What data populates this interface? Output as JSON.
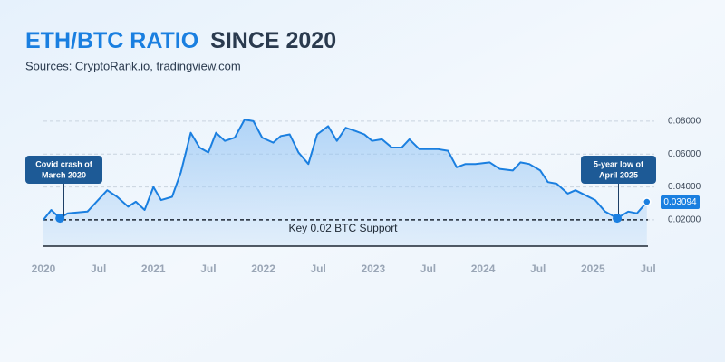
{
  "chart_data": {
    "type": "line",
    "title": [
      "ETH/BTC RATIO",
      "SINCE 2020"
    ],
    "subtitle": "Sources: CryptoRank.io, tradingview.com",
    "x": [
      2020.0,
      2020.07,
      2020.15,
      2020.22,
      2020.4,
      2020.58,
      2020.67,
      2020.77,
      2020.84,
      2020.92,
      2021.0,
      2021.07,
      2021.17,
      2021.25,
      2021.34,
      2021.42,
      2021.5,
      2021.57,
      2021.65,
      2021.74,
      2021.83,
      2021.91,
      2021.99,
      2022.09,
      2022.16,
      2022.24,
      2022.32,
      2022.41,
      2022.49,
      2022.59,
      2022.67,
      2022.75,
      2022.84,
      2022.92,
      2022.99,
      2023.08,
      2023.17,
      2023.26,
      2023.33,
      2023.42,
      2023.59,
      2023.68,
      2023.76,
      2023.84,
      2023.93,
      2024.06,
      2024.15,
      2024.27,
      2024.34,
      2024.42,
      2024.52,
      2024.59,
      2024.67,
      2024.77,
      2024.84,
      2024.93,
      2025.02,
      2025.11,
      2025.22,
      2025.32,
      2025.4,
      2025.49
    ],
    "series": [
      {
        "name": "ETH/BTC",
        "color": "#1a7fe0",
        "values": [
          0.02,
          0.026,
          0.021,
          0.024,
          0.025,
          0.038,
          0.034,
          0.028,
          0.031,
          0.026,
          0.04,
          0.032,
          0.034,
          0.049,
          0.073,
          0.064,
          0.061,
          0.073,
          0.068,
          0.07,
          0.081,
          0.08,
          0.07,
          0.067,
          0.071,
          0.072,
          0.061,
          0.054,
          0.072,
          0.077,
          0.068,
          0.076,
          0.074,
          0.072,
          0.068,
          0.069,
          0.064,
          0.064,
          0.069,
          0.063,
          0.063,
          0.062,
          0.052,
          0.054,
          0.054,
          0.055,
          0.051,
          0.05,
          0.055,
          0.054,
          0.05,
          0.043,
          0.042,
          0.036,
          0.038,
          0.035,
          0.032,
          0.025,
          0.021,
          0.025,
          0.024,
          0.03094
        ]
      }
    ],
    "xlim": [
      2020,
      2025.5
    ],
    "xticks": [
      2020,
      {
        "value": 2020.5,
        "label": "Jul"
      },
      2021,
      {
        "value": 2021.5,
        "label": "Jul"
      },
      2022,
      {
        "value": 2022.5,
        "label": "Jul"
      },
      2023,
      {
        "value": 2023.5,
        "label": "Jul"
      },
      2024,
      {
        "value": 2024.5,
        "label": "Jul"
      },
      2025,
      {
        "value": 2025.5,
        "label": "Jul"
      }
    ],
    "ylim": [
      0.004,
      0.082
    ],
    "yticks": [
      {
        "value": 0.02,
        "label": "0.02000"
      },
      {
        "value": 0.04,
        "label": "0.04000"
      },
      {
        "value": 0.06,
        "label": "0.06000"
      },
      {
        "value": 0.08,
        "label": "0.08000"
      }
    ],
    "grid": true,
    "support": {
      "value": 0.02,
      "label": "Key 0.02 BTC Support"
    },
    "annotations": [
      {
        "lines": [
          "Covid crash of",
          "March 2020"
        ]
      },
      {
        "lines": [
          "5-year low of",
          "April 2025"
        ]
      }
    ]
  }
}
